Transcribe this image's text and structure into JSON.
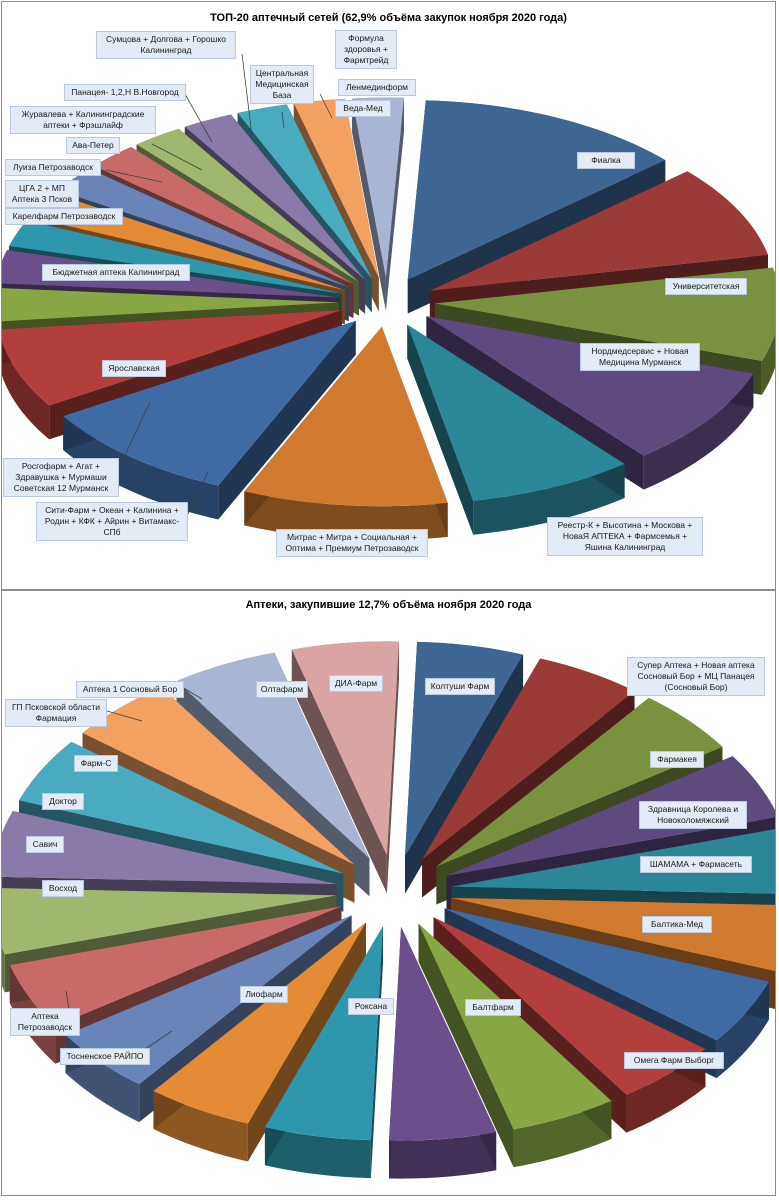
{
  "chart_data": [
    {
      "type": "pie",
      "title": "ТОП-20 аптечный сетей (62,9% объёма закупок ноября 2020 года)",
      "slices": [
        {
          "label": "Фиалка",
          "value": 10.5,
          "color": "#3d6693"
        },
        {
          "label": "Университетская",
          "value": 7.0,
          "color": "#9a3b38"
        },
        {
          "label": "Нордмедсервис + Новая Медицина Мурманск",
          "value": 7.0,
          "color": "#7a923f"
        },
        {
          "label": "Реестр-К + Высотина + Москова + НоваЯ АПТЕКА + Фармсемья + Яшина Калининград",
          "value": 7.5,
          "color": "#5f4a7f"
        },
        {
          "label": "Митрас + Митра + Социальная + Оптима + Премиум Петрозаводск",
          "value": 6.5,
          "color": "#2b8698"
        },
        {
          "label": "Сити-Фарм + Океан + Калинина + Родин + КФК + Айрин + Витамакс-СПб",
          "value": 8.0,
          "color": "#cf7a2e"
        },
        {
          "label": "Росгофарм + Агат + Здравушка + Мурмаши Советская 12 Мурманск",
          "value": 0.0,
          "color": "#3f6ba4"
        },
        {
          "label": "Ярославская",
          "value": 8.0,
          "color": "#3f6ba4"
        },
        {
          "label": "Бюджетная аптека Калининград",
          "value": 6.0,
          "color": "#b23f3c"
        },
        {
          "label": "Карелфарм Петрозаводск",
          "value": 2.5,
          "color": "#88a644"
        },
        {
          "label": "ЦГА 2 + МП Аптека 3 Псков",
          "value": 2.5,
          "color": "#6b4f8c"
        },
        {
          "label": "Луиза Петрозаводск",
          "value": 2.0,
          "color": "#2e97ad"
        },
        {
          "label": "Ава-Петер",
          "value": 2.0,
          "color": "#e48c35"
        },
        {
          "label": "Журавлева + Калининградские аптеки + Фрэшлайф",
          "value": 2.0,
          "color": "#6984b8"
        },
        {
          "label": "Панацея- 1,2,Н В.Новгород",
          "value": 2.0,
          "color": "#c76a69"
        },
        {
          "label": "Сумцова + Долгова + Горошко Калининград",
          "value": 2.0,
          "color": "#a0b86d"
        },
        {
          "label": "Центральная Медицинская База",
          "value": 2.0,
          "color": "#8a7aa9"
        },
        {
          "label": "Формула здоровья + Фармтрейд",
          "value": 2.0,
          "color": "#4aaac0"
        },
        {
          "label": "Веда-Мед",
          "value": 2.0,
          "color": "#f2a161"
        },
        {
          "label": "Ленмединформ",
          "value": 2.0,
          "color": "#a8b5d3"
        }
      ]
    },
    {
      "type": "pie",
      "title": "Аптеки, закупившие 12,7% объёма ноября 2020 года",
      "slices": [
        {
          "label": "Колтуши Фарм",
          "value": 5.0,
          "color": "#3d6693"
        },
        {
          "label": "Супер Аптека + Новая аптека Сосновый Бор + МЦ Панацея (Сосновый Бор)",
          "value": 5.0,
          "color": "#9a3b38"
        },
        {
          "label": "Фармакея",
          "value": 5.0,
          "color": "#7a923f"
        },
        {
          "label": "Здравница Королева и Новоколомяжский",
          "value": 5.0,
          "color": "#5f4a7f"
        },
        {
          "label": "ШАМАМА + Фармасеть",
          "value": 5.0,
          "color": "#2b8698"
        },
        {
          "label": "Балтика-Мед",
          "value": 5.0,
          "color": "#cf7a2e"
        },
        {
          "label": "Омега Фарм Выборг",
          "value": 5.0,
          "color": "#3f6ba4"
        },
        {
          "label": "Балтфарм",
          "value": 5.0,
          "color": "#b23f3c"
        },
        {
          "label": "Роксана",
          "value": 5.0,
          "color": "#88a644"
        },
        {
          "label": "Лиофарм",
          "value": 5.0,
          "color": "#6b4f8c"
        },
        {
          "label": "Тосненское РАЙПО",
          "value": 5.0,
          "color": "#2e97ad"
        },
        {
          "label": "Аптека Петрозаводск",
          "value": 5.0,
          "color": "#e48c35"
        },
        {
          "label": "Восход",
          "value": 5.0,
          "color": "#6984b8"
        },
        {
          "label": "Савич",
          "value": 5.0,
          "color": "#c76a69"
        },
        {
          "label": "Доктор",
          "value": 5.0,
          "color": "#a0b86d"
        },
        {
          "label": "Фарм-С",
          "value": 5.0,
          "color": "#8a7aa9"
        },
        {
          "label": "ГП Псковской области Фармация",
          "value": 5.0,
          "color": "#4aaac0"
        },
        {
          "label": "Аптека 1 Сосновый Бор",
          "value": 5.0,
          "color": "#f2a161"
        },
        {
          "label": "Олтафарм",
          "value": 5.0,
          "color": "#a8b5d3"
        },
        {
          "label": "ДИА-Фарм",
          "value": 5.0,
          "color": "#d9a5a4"
        }
      ]
    }
  ]
}
